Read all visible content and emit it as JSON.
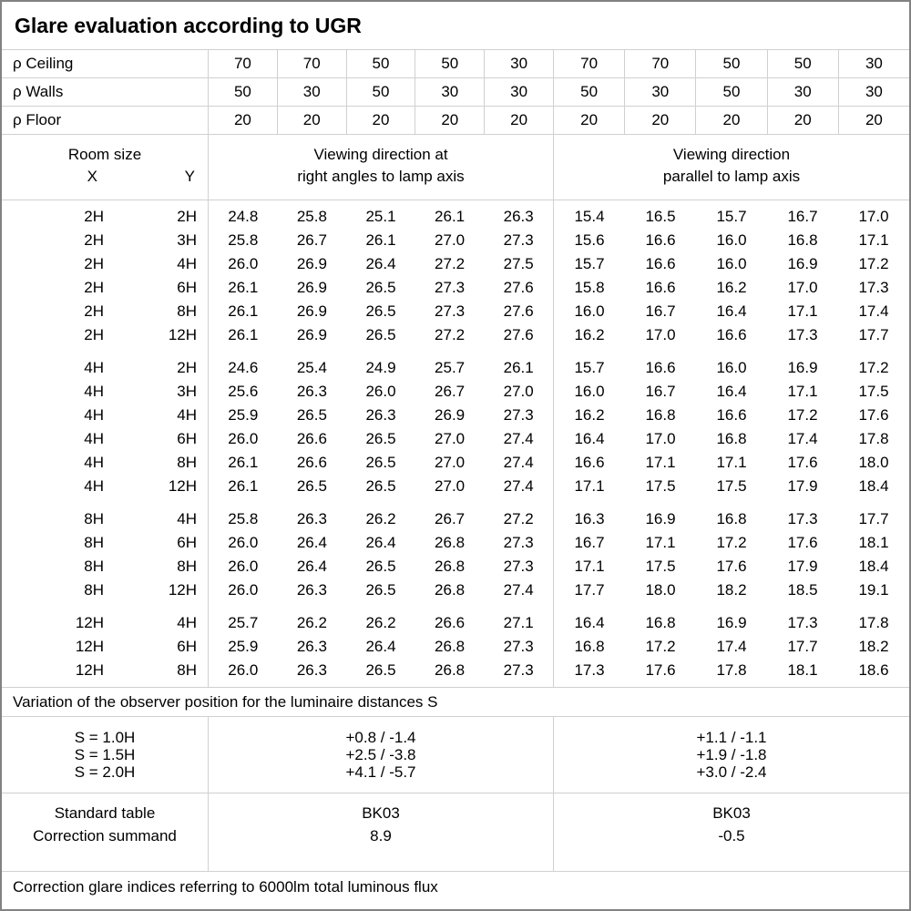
{
  "title": "Glare evaluation according to UGR",
  "colors": {
    "background": "#ffffff",
    "text": "#000000",
    "grid_line": "#d0d0d0",
    "outer_border": "#828282"
  },
  "reflectance": {
    "rows": [
      {
        "label": "ρ Ceiling",
        "values": [
          "70",
          "70",
          "50",
          "50",
          "30",
          "70",
          "70",
          "50",
          "50",
          "30"
        ]
      },
      {
        "label": "ρ Walls",
        "values": [
          "50",
          "30",
          "50",
          "30",
          "30",
          "50",
          "30",
          "50",
          "30",
          "30"
        ]
      },
      {
        "label": "ρ Floor",
        "values": [
          "20",
          "20",
          "20",
          "20",
          "20",
          "20",
          "20",
          "20",
          "20",
          "20"
        ]
      }
    ]
  },
  "header": {
    "room_size": "Room size",
    "x_label": "X",
    "y_label": "Y",
    "right_angles_line1": "Viewing direction at",
    "right_angles_line2": "right angles to lamp axis",
    "parallel_line1": "Viewing direction",
    "parallel_line2": "parallel to lamp axis"
  },
  "ugr_blocks": [
    {
      "rows": [
        {
          "x": "2H",
          "y": "2H",
          "right_angles": [
            "24.8",
            "25.8",
            "25.1",
            "26.1",
            "26.3"
          ],
          "parallel": [
            "15.4",
            "16.5",
            "15.7",
            "16.7",
            "17.0"
          ]
        },
        {
          "x": "2H",
          "y": "3H",
          "right_angles": [
            "25.8",
            "26.7",
            "26.1",
            "27.0",
            "27.3"
          ],
          "parallel": [
            "15.6",
            "16.6",
            "16.0",
            "16.8",
            "17.1"
          ]
        },
        {
          "x": "2H",
          "y": "4H",
          "right_angles": [
            "26.0",
            "26.9",
            "26.4",
            "27.2",
            "27.5"
          ],
          "parallel": [
            "15.7",
            "16.6",
            "16.0",
            "16.9",
            "17.2"
          ]
        },
        {
          "x": "2H",
          "y": "6H",
          "right_angles": [
            "26.1",
            "26.9",
            "26.5",
            "27.3",
            "27.6"
          ],
          "parallel": [
            "15.8",
            "16.6",
            "16.2",
            "17.0",
            "17.3"
          ]
        },
        {
          "x": "2H",
          "y": "8H",
          "right_angles": [
            "26.1",
            "26.9",
            "26.5",
            "27.3",
            "27.6"
          ],
          "parallel": [
            "16.0",
            "16.7",
            "16.4",
            "17.1",
            "17.4"
          ]
        },
        {
          "x": "2H",
          "y": "12H",
          "right_angles": [
            "26.1",
            "26.9",
            "26.5",
            "27.2",
            "27.6"
          ],
          "parallel": [
            "16.2",
            "17.0",
            "16.6",
            "17.3",
            "17.7"
          ]
        }
      ]
    },
    {
      "rows": [
        {
          "x": "4H",
          "y": "2H",
          "right_angles": [
            "24.6",
            "25.4",
            "24.9",
            "25.7",
            "26.1"
          ],
          "parallel": [
            "15.7",
            "16.6",
            "16.0",
            "16.9",
            "17.2"
          ]
        },
        {
          "x": "4H",
          "y": "3H",
          "right_angles": [
            "25.6",
            "26.3",
            "26.0",
            "26.7",
            "27.0"
          ],
          "parallel": [
            "16.0",
            "16.7",
            "16.4",
            "17.1",
            "17.5"
          ]
        },
        {
          "x": "4H",
          "y": "4H",
          "right_angles": [
            "25.9",
            "26.5",
            "26.3",
            "26.9",
            "27.3"
          ],
          "parallel": [
            "16.2",
            "16.8",
            "16.6",
            "17.2",
            "17.6"
          ]
        },
        {
          "x": "4H",
          "y": "6H",
          "right_angles": [
            "26.0",
            "26.6",
            "26.5",
            "27.0",
            "27.4"
          ],
          "parallel": [
            "16.4",
            "17.0",
            "16.8",
            "17.4",
            "17.8"
          ]
        },
        {
          "x": "4H",
          "y": "8H",
          "right_angles": [
            "26.1",
            "26.6",
            "26.5",
            "27.0",
            "27.4"
          ],
          "parallel": [
            "16.6",
            "17.1",
            "17.1",
            "17.6",
            "18.0"
          ]
        },
        {
          "x": "4H",
          "y": "12H",
          "right_angles": [
            "26.1",
            "26.5",
            "26.5",
            "27.0",
            "27.4"
          ],
          "parallel": [
            "17.1",
            "17.5",
            "17.5",
            "17.9",
            "18.4"
          ]
        }
      ]
    },
    {
      "rows": [
        {
          "x": "8H",
          "y": "4H",
          "right_angles": [
            "25.8",
            "26.3",
            "26.2",
            "26.7",
            "27.2"
          ],
          "parallel": [
            "16.3",
            "16.9",
            "16.8",
            "17.3",
            "17.7"
          ]
        },
        {
          "x": "8H",
          "y": "6H",
          "right_angles": [
            "26.0",
            "26.4",
            "26.4",
            "26.8",
            "27.3"
          ],
          "parallel": [
            "16.7",
            "17.1",
            "17.2",
            "17.6",
            "18.1"
          ]
        },
        {
          "x": "8H",
          "y": "8H",
          "right_angles": [
            "26.0",
            "26.4",
            "26.5",
            "26.8",
            "27.3"
          ],
          "parallel": [
            "17.1",
            "17.5",
            "17.6",
            "17.9",
            "18.4"
          ]
        },
        {
          "x": "8H",
          "y": "12H",
          "right_angles": [
            "26.0",
            "26.3",
            "26.5",
            "26.8",
            "27.4"
          ],
          "parallel": [
            "17.7",
            "18.0",
            "18.2",
            "18.5",
            "19.1"
          ]
        }
      ]
    },
    {
      "rows": [
        {
          "x": "12H",
          "y": "4H",
          "right_angles": [
            "25.7",
            "26.2",
            "26.2",
            "26.6",
            "27.1"
          ],
          "parallel": [
            "16.4",
            "16.8",
            "16.9",
            "17.3",
            "17.8"
          ]
        },
        {
          "x": "12H",
          "y": "6H",
          "right_angles": [
            "25.9",
            "26.3",
            "26.4",
            "26.8",
            "27.3"
          ],
          "parallel": [
            "16.8",
            "17.2",
            "17.4",
            "17.7",
            "18.2"
          ]
        },
        {
          "x": "12H",
          "y": "8H",
          "right_angles": [
            "26.0",
            "26.3",
            "26.5",
            "26.8",
            "27.3"
          ],
          "parallel": [
            "17.3",
            "17.6",
            "17.8",
            "18.1",
            "18.6"
          ]
        }
      ]
    }
  ],
  "variation_note": "Variation of the observer position for the luminaire distances S",
  "spacing_rows": [
    {
      "label": "S = 1.0H",
      "right_angles": "+0.8 / -1.4",
      "parallel": "+1.1 / -1.1"
    },
    {
      "label": "S = 1.5H",
      "right_angles": "+2.5 / -3.8",
      "parallel": "+1.9 / -1.8"
    },
    {
      "label": "S = 2.0H",
      "right_angles": "+4.1 / -5.7",
      "parallel": "+3.0 / -2.4"
    }
  ],
  "standard_rows": [
    {
      "label": "Standard table",
      "right_angles": "BK03",
      "parallel": "BK03"
    },
    {
      "label": "Correction summand",
      "right_angles": "8.9",
      "parallel": "-0.5"
    }
  ],
  "footer_note": "Correction glare indices referring to 6000lm total luminous flux"
}
